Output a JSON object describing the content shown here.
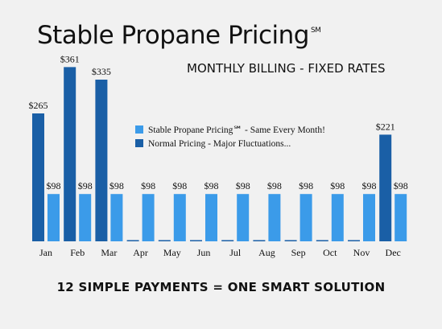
{
  "title": "Stable Propane Pricing",
  "title_mark": "SM",
  "subtitle": "MONTHLY BILLING - FIXED RATES",
  "footer": "12 SIMPLE PAYMENTS = ONE SMART SOLUTION",
  "colors": {
    "stable": "#3b9be9",
    "normal": "#1a5fa6",
    "background": "#f1f1f1"
  },
  "chart_data": {
    "type": "bar",
    "categories": [
      "Jan",
      "Feb",
      "Mar",
      "Apr",
      "May",
      "Jun",
      "Jul",
      "Aug",
      "Sep",
      "Oct",
      "Nov",
      "Dec"
    ],
    "series": [
      {
        "name": "Normal Pricing - Major Fluctuations...",
        "values": [
          265,
          361,
          335,
          0,
          0,
          0,
          0,
          0,
          0,
          0,
          0,
          221
        ],
        "labels": [
          "$265",
          "$361",
          "$335",
          "",
          "",
          "",
          "",
          "",
          "",
          "",
          "",
          "$221"
        ]
      },
      {
        "name": "Stable Propane Pricing℠ - Same Every Month!",
        "values": [
          98,
          98,
          98,
          98,
          98,
          98,
          98,
          98,
          98,
          98,
          98,
          98
        ],
        "labels": [
          "$98",
          "$98",
          "$98",
          "$98",
          "$98",
          "$98",
          "$98",
          "$98",
          "$98",
          "$98",
          "$98",
          "$98"
        ]
      }
    ],
    "ylim": [
      0,
      380
    ],
    "legend_position": "top-center",
    "grid": false
  }
}
